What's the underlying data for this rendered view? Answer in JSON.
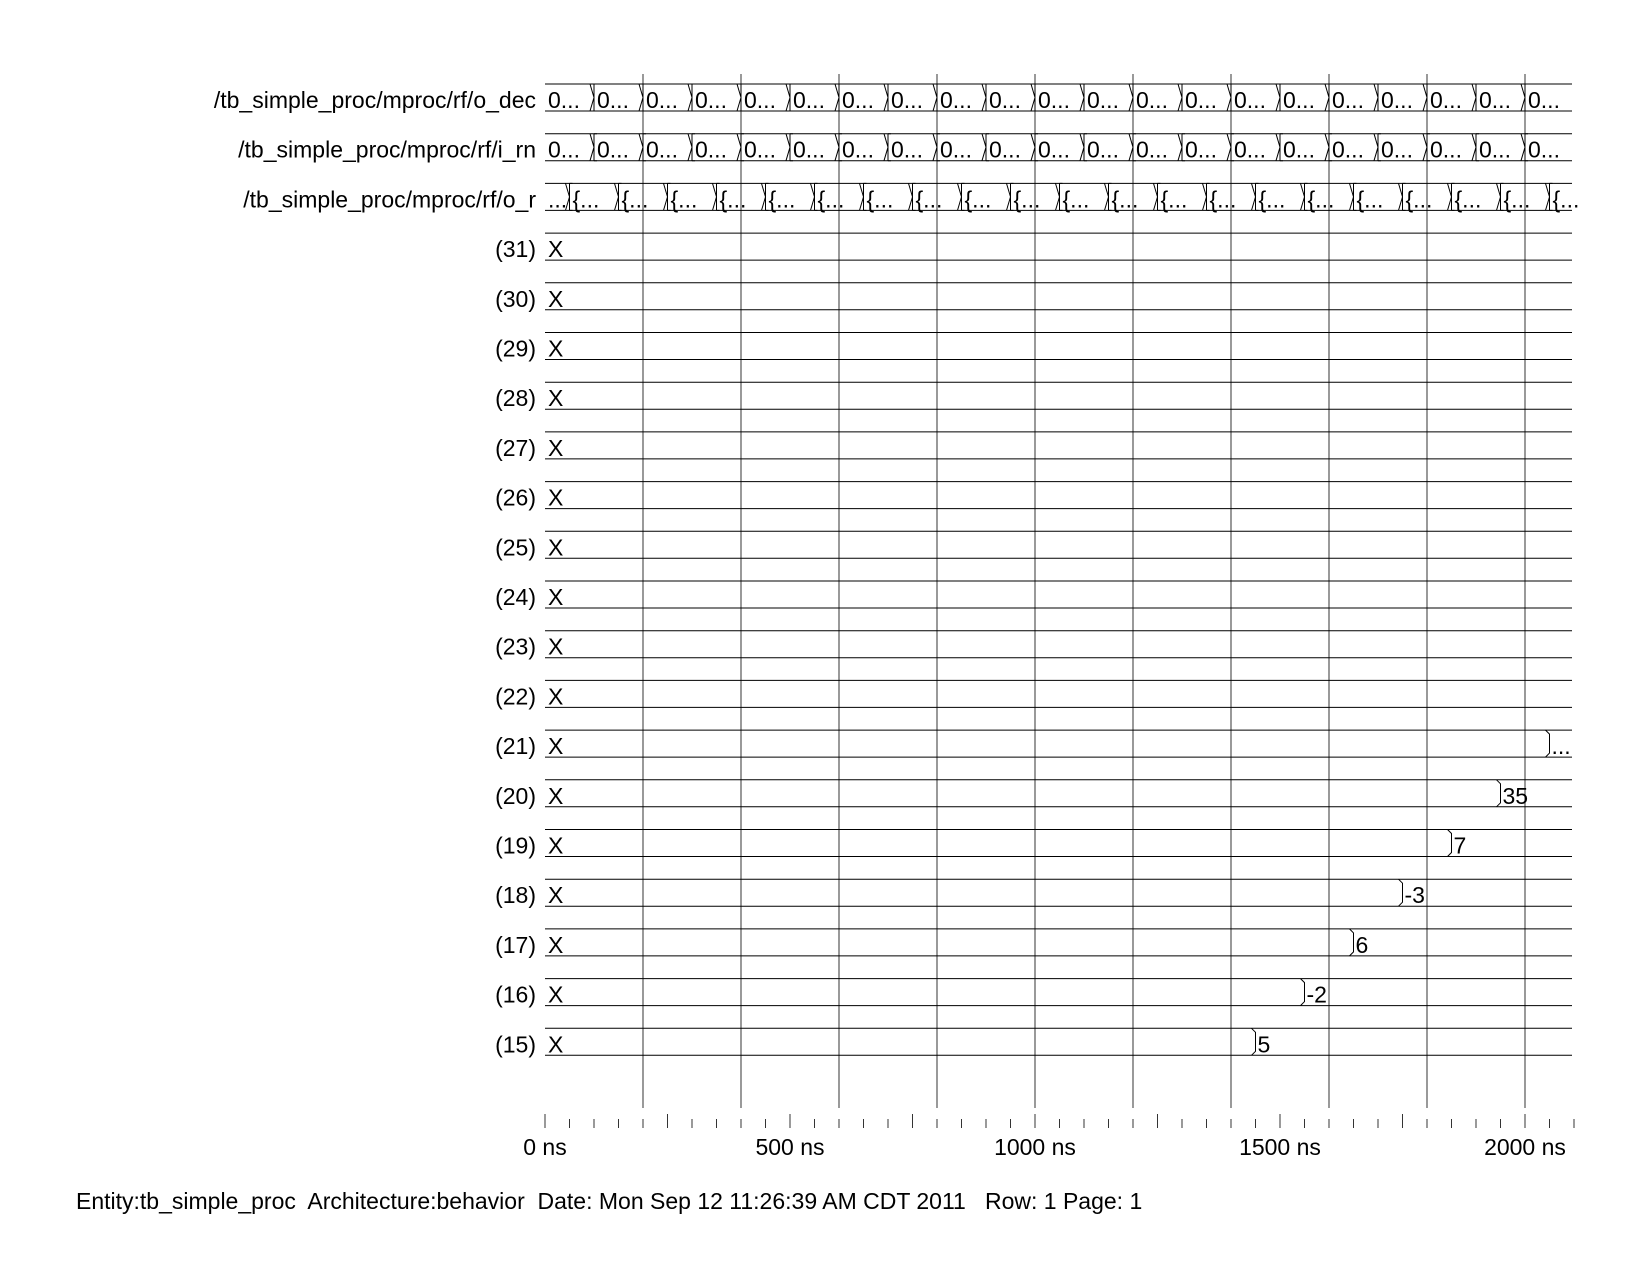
{
  "waveform": {
    "time_unit": "ns",
    "signals": [
      {
        "name": "/tb_simple_proc/mproc/rf/o_dec",
        "kind": "bus",
        "initial": "0...",
        "segment_label": "0...",
        "transitions_ns": [
          100,
          200,
          300,
          400,
          500,
          600,
          700,
          800,
          900,
          1000,
          1100,
          1200,
          1300,
          1400,
          1500,
          1600,
          1700,
          1800,
          1900,
          2000
        ]
      },
      {
        "name": "/tb_simple_proc/mproc/rf/i_rn",
        "kind": "bus",
        "initial": "0...",
        "segment_label": "0...",
        "transitions_ns": [
          100,
          200,
          300,
          400,
          500,
          600,
          700,
          800,
          900,
          1000,
          1100,
          1200,
          1300,
          1400,
          1500,
          1600,
          1700,
          1800,
          1900,
          2000
        ]
      },
      {
        "name": "/tb_simple_proc/mproc/rf/o_r",
        "kind": "bus",
        "initial": "...",
        "segment_label": "{...",
        "transitions_ns": [
          50,
          150,
          250,
          350,
          450,
          550,
          650,
          750,
          850,
          950,
          1050,
          1150,
          1250,
          1350,
          1450,
          1550,
          1650,
          1750,
          1850,
          1950,
          2050
        ]
      },
      {
        "name": "(31)",
        "kind": "value",
        "initial": "X",
        "changes": []
      },
      {
        "name": "(30)",
        "kind": "value",
        "initial": "X",
        "changes": []
      },
      {
        "name": "(29)",
        "kind": "value",
        "initial": "X",
        "changes": []
      },
      {
        "name": "(28)",
        "kind": "value",
        "initial": "X",
        "changes": []
      },
      {
        "name": "(27)",
        "kind": "value",
        "initial": "X",
        "changes": []
      },
      {
        "name": "(26)",
        "kind": "value",
        "initial": "X",
        "changes": []
      },
      {
        "name": "(25)",
        "kind": "value",
        "initial": "X",
        "changes": []
      },
      {
        "name": "(24)",
        "kind": "value",
        "initial": "X",
        "changes": []
      },
      {
        "name": "(23)",
        "kind": "value",
        "initial": "X",
        "changes": []
      },
      {
        "name": "(22)",
        "kind": "value",
        "initial": "X",
        "changes": []
      },
      {
        "name": "(21)",
        "kind": "value",
        "initial": "X",
        "changes": [
          {
            "t": 2050,
            "v": "..."
          }
        ]
      },
      {
        "name": "(20)",
        "kind": "value",
        "initial": "X",
        "changes": [
          {
            "t": 1950,
            "v": "35"
          }
        ]
      },
      {
        "name": "(19)",
        "kind": "value",
        "initial": "X",
        "changes": [
          {
            "t": 1850,
            "v": "7"
          }
        ]
      },
      {
        "name": "(18)",
        "kind": "value",
        "initial": "X",
        "changes": [
          {
            "t": 1750,
            "v": "-3"
          }
        ]
      },
      {
        "name": "(17)",
        "kind": "value",
        "initial": "X",
        "changes": [
          {
            "t": 1650,
            "v": "6"
          }
        ]
      },
      {
        "name": "(16)",
        "kind": "value",
        "initial": "X",
        "changes": [
          {
            "t": 1550,
            "v": "-2"
          }
        ]
      },
      {
        "name": "(15)",
        "kind": "value",
        "initial": "X",
        "changes": [
          {
            "t": 1450,
            "v": "5"
          }
        ]
      }
    ],
    "cursor_times_ns": [
      200,
      400,
      600,
      800,
      1000,
      1200,
      1400,
      1600,
      1800,
      2000
    ],
    "time_axis": {
      "min_ns": 0,
      "max_ns": 2100,
      "labels": [
        {
          "t": 0,
          "text": "0 ns"
        },
        {
          "t": 500,
          "text": "500 ns"
        },
        {
          "t": 1000,
          "text": "1000 ns"
        },
        {
          "t": 1500,
          "text": "1500 ns"
        },
        {
          "t": 2000,
          "text": "2000 ns"
        }
      ]
    }
  },
  "footer": {
    "text": "Entity:tb_simple_proc  Architecture:behavior  Date: Mon Sep 12 11:26:39 AM CDT 2011   Row: 1 Page: 1"
  }
}
